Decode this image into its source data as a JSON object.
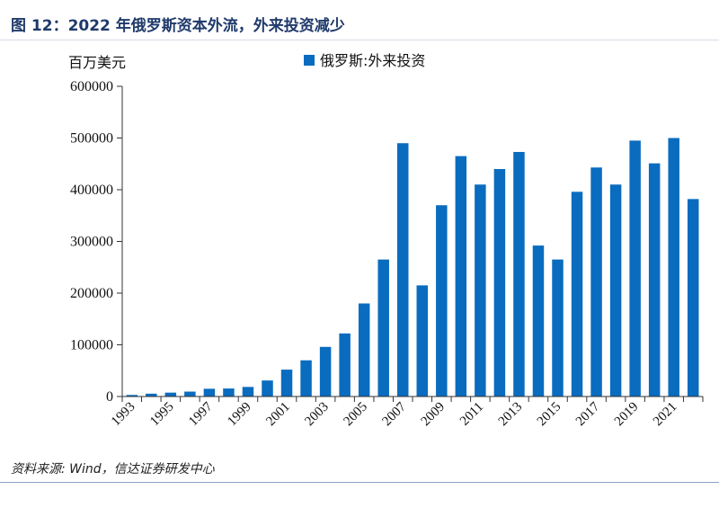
{
  "figure": {
    "title": "图 12：2022 年俄罗斯资本外流，外来投资减少",
    "source": "资料来源: Wind，信达证券研发中心"
  },
  "colors": {
    "bar": "#0a6cbf",
    "title": "#1f3a6b",
    "axis": "#333333"
  },
  "chart_data": {
    "type": "bar",
    "unit_label": "百万美元",
    "legend": [
      "俄罗斯:外来投资"
    ],
    "legend_position": "top-center",
    "grid": false,
    "ylim": [
      0,
      600000
    ],
    "yticks": [
      0,
      100000,
      200000,
      300000,
      400000,
      500000,
      600000
    ],
    "ytick_labels": [
      "0",
      "100000",
      "200000",
      "300000",
      "400000",
      "500000",
      "600000"
    ],
    "xtick_labels": [
      "1993",
      "1995",
      "1997",
      "1999",
      "2001",
      "2003",
      "2005",
      "2007",
      "2009",
      "2011",
      "2013",
      "2015",
      "2017",
      "2019",
      "2021"
    ],
    "categories": [
      "1993",
      "1994",
      "1995",
      "1996",
      "1997",
      "1998",
      "1999",
      "2000",
      "2001",
      "2002",
      "2003",
      "2004",
      "2005",
      "2006",
      "2007",
      "2008",
      "2009",
      "2010",
      "2011",
      "2012",
      "2013",
      "2014",
      "2015",
      "2016",
      "2017",
      "2018",
      "2019",
      "2020",
      "2021",
      "2022"
    ],
    "series": [
      {
        "name": "俄罗斯:外来投资",
        "values": [
          3000,
          5500,
          7500,
          9500,
          15000,
          15500,
          18500,
          31000,
          52000,
          70000,
          96000,
          122000,
          180000,
          265000,
          490000,
          215000,
          370000,
          465000,
          410000,
          440000,
          473000,
          292000,
          265000,
          396000,
          443000,
          410000,
          495000,
          451000,
          500000,
          382000
        ]
      }
    ]
  }
}
